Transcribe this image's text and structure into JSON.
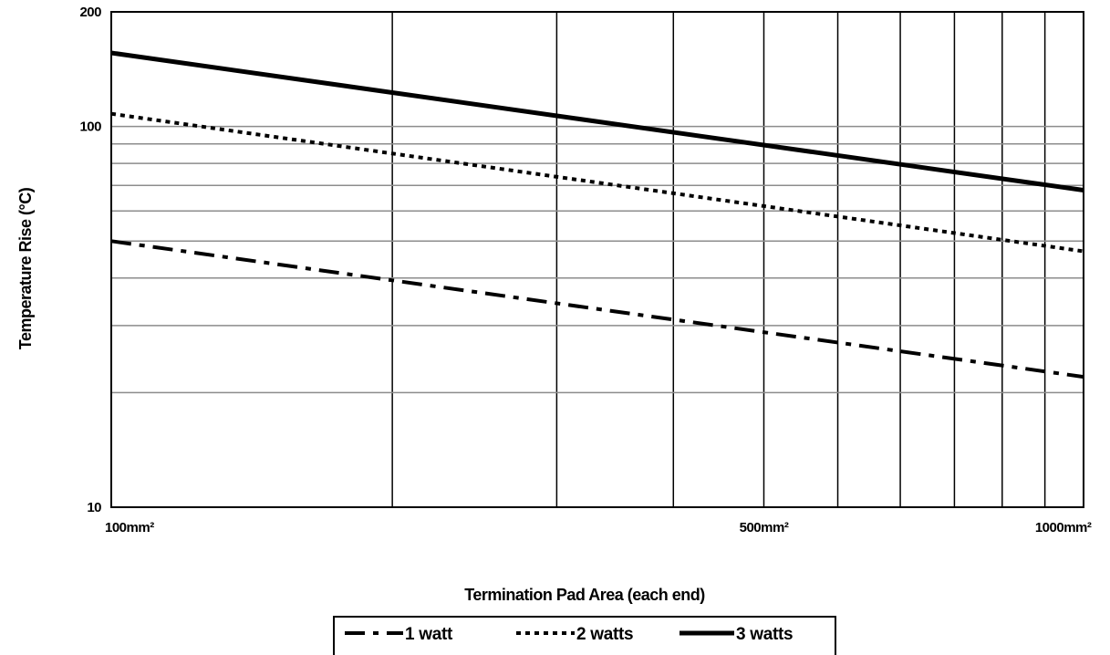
{
  "chart_data": {
    "type": "line",
    "title": "",
    "xlabel": "Termination Pad Area (each end)",
    "ylabel": "Temperature Rise (°C)",
    "x_scale": "log",
    "y_scale": "log",
    "xlim": [
      100,
      1100
    ],
    "ylim": [
      10,
      200
    ],
    "x_ticks": [
      {
        "value": 100,
        "label": "100mm²"
      },
      {
        "value": 500,
        "label": "500mm²"
      },
      {
        "value": 1000,
        "label": "1000mm²"
      }
    ],
    "y_ticks": [
      {
        "value": 10,
        "label": "10"
      },
      {
        "value": 100,
        "label": "100"
      },
      {
        "value": 200,
        "label": "200"
      }
    ],
    "x_gridlines": [
      200,
      300,
      400,
      500,
      600,
      700,
      800,
      900,
      1000
    ],
    "y_gridlines": [
      20,
      30,
      40,
      50,
      60,
      70,
      80,
      90,
      100
    ],
    "grid": true,
    "legend_position": "bottom",
    "series": [
      {
        "name": "1 watt",
        "style": "dash-dot",
        "x": [
          100,
          1100
        ],
        "y": [
          50,
          22
        ]
      },
      {
        "name": "2 watts",
        "style": "dotted",
        "x": [
          100,
          1100
        ],
        "y": [
          108,
          47
        ]
      },
      {
        "name": "3 watts",
        "style": "solid",
        "x": [
          100,
          1100
        ],
        "y": [
          156,
          68
        ]
      }
    ]
  }
}
